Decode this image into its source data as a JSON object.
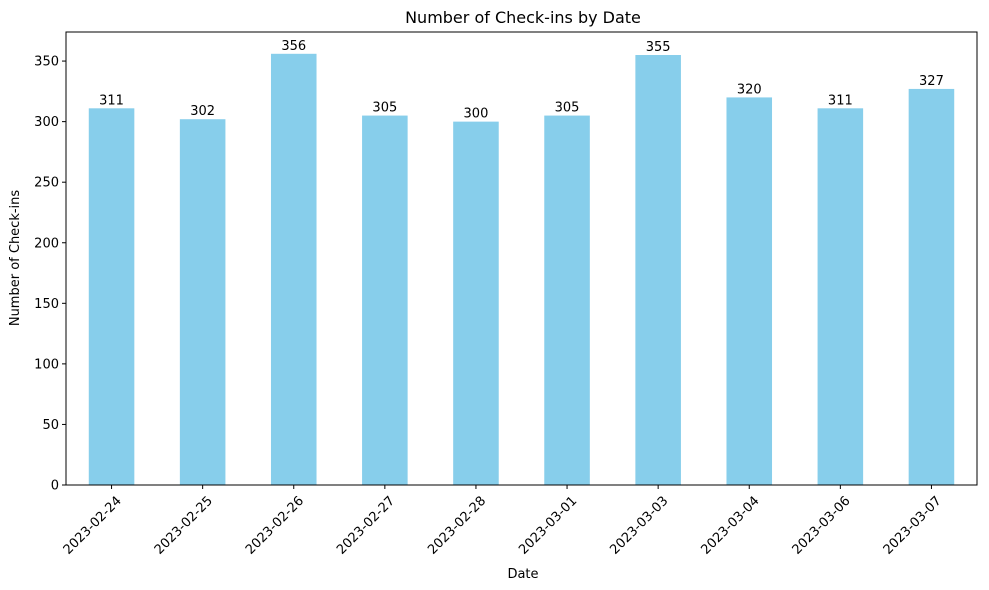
{
  "chart_data": {
    "type": "bar",
    "title": "Number of Check-ins by Date",
    "xlabel": "Date",
    "ylabel": "Number of Check-ins",
    "categories": [
      "2023-02-24",
      "2023-02-25",
      "2023-02-26",
      "2023-02-27",
      "2023-02-28",
      "2023-03-01",
      "2023-03-03",
      "2023-03-04",
      "2023-03-06",
      "2023-03-07"
    ],
    "values": [
      311,
      302,
      356,
      305,
      300,
      305,
      355,
      320,
      311,
      327
    ],
    "ylim": [
      0,
      374
    ],
    "yticks": [
      0,
      50,
      100,
      150,
      200,
      250,
      300,
      350
    ],
    "bar_color": "#87CEEB",
    "grid": false,
    "data_labels": true,
    "xtick_rotation": 45
  }
}
